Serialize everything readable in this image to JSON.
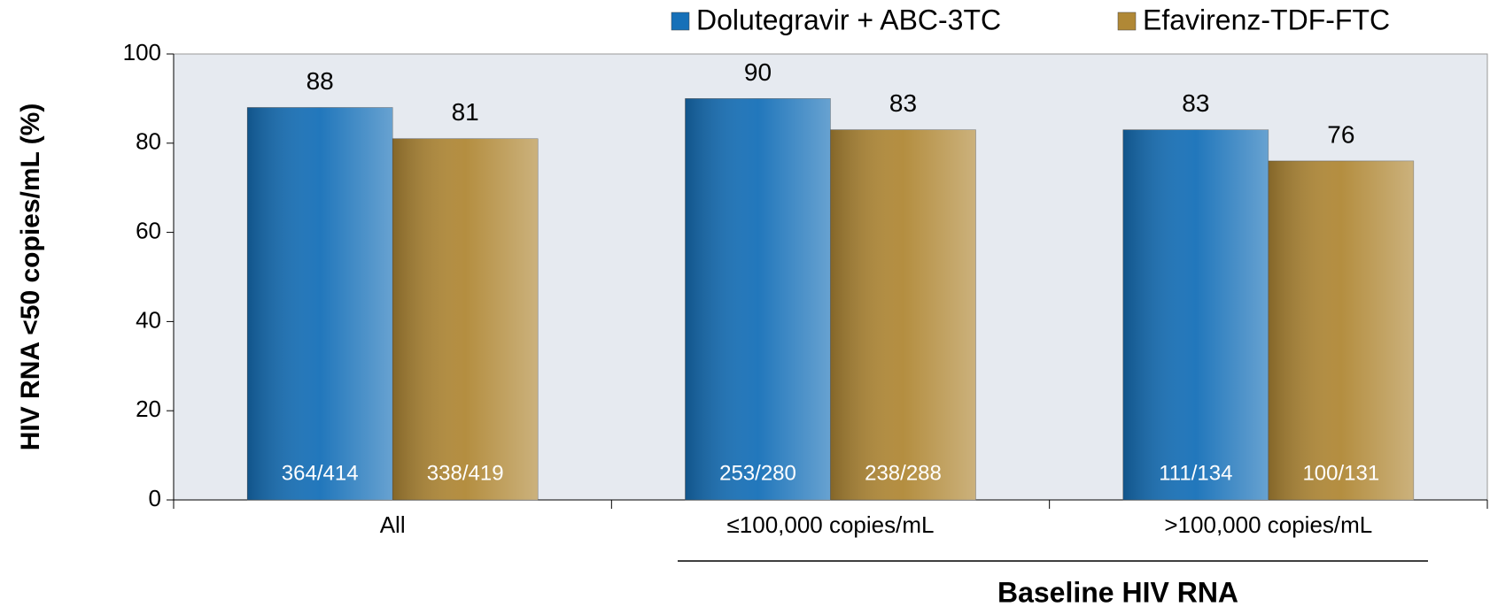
{
  "chart_data": {
    "type": "bar",
    "categories": [
      "All",
      "≤100,000 copies/mL",
      ">100,000 copies/mL"
    ],
    "series": [
      {
        "name": "Dolutegravir + ABC-3TC",
        "color": "#1670b8",
        "values": [
          88,
          90,
          83
        ],
        "counts": [
          "364/414",
          "253/280",
          "111/134"
        ]
      },
      {
        "name": "Efavirenz-TDF-FTC",
        "color": "#b08836",
        "values": [
          81,
          83,
          76
        ],
        "counts": [
          "338/419",
          "238/288",
          "100/131"
        ]
      }
    ],
    "ylabel": "HIV RNA <50 copies/mL (%)",
    "xlabel": "Baseline HIV RNA",
    "ylim": [
      0,
      100
    ],
    "yticks": [
      0,
      20,
      40,
      60,
      80,
      100
    ],
    "grid": false,
    "legend": "top-right"
  }
}
